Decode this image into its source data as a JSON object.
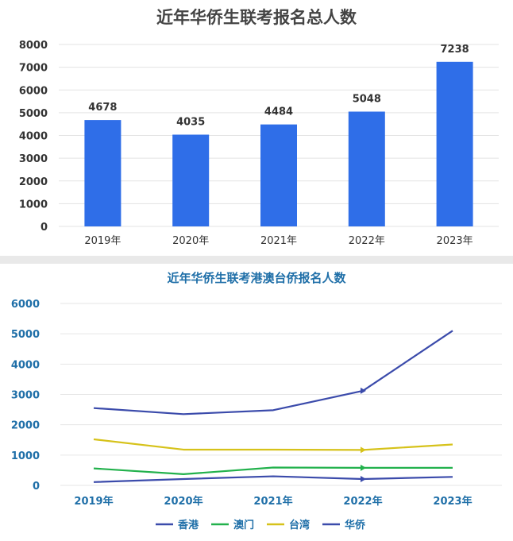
{
  "chart_data": [
    {
      "type": "bar",
      "title": "近年华侨生联考报名总人数",
      "categories": [
        "2019年",
        "2020年",
        "2021年",
        "2022年",
        "2023年"
      ],
      "values": [
        4678,
        4035,
        4484,
        5048,
        7238
      ],
      "data_labels": [
        "4678",
        "4035",
        "4484",
        "5048",
        "7238"
      ],
      "ylim": [
        0,
        8000
      ],
      "y_ticks": [
        "0",
        "1000",
        "2000",
        "3000",
        "4000",
        "5000",
        "6000",
        "7000",
        "8000"
      ],
      "grid": true,
      "colors": {
        "bar": "#2f6ee8",
        "grid": "#e3e3e3",
        "axis_text": "#333333",
        "title": "#444444"
      }
    },
    {
      "type": "line",
      "title": "近年华侨生联考港澳台侨报名人数",
      "categories": [
        "2019年",
        "2020年",
        "2021年",
        "2022年",
        "2023年"
      ],
      "ylim": [
        0,
        6000
      ],
      "y_ticks": [
        "0",
        "1000",
        "2000",
        "3000",
        "4000",
        "5000",
        "6000"
      ],
      "grid": true,
      "legend_position": "bottom",
      "series": [
        {
          "name": "香港",
          "color": "#3b4bab",
          "values": [
            2550,
            2350,
            2480,
            3120,
            5100
          ]
        },
        {
          "name": "澳门",
          "color": "#22b14c",
          "values": [
            560,
            370,
            590,
            580,
            580
          ]
        },
        {
          "name": "台湾",
          "color": "#d6c21a",
          "values": [
            1520,
            1180,
            1180,
            1170,
            1350
          ]
        },
        {
          "name": "华侨",
          "color": "#3b4bab",
          "values": [
            110,
            210,
            300,
            210,
            280
          ]
        }
      ],
      "colors": {
        "title": "#1f6fa8",
        "axis_text": "#1f6fa8",
        "grid": "#e6e6e6"
      }
    }
  ]
}
